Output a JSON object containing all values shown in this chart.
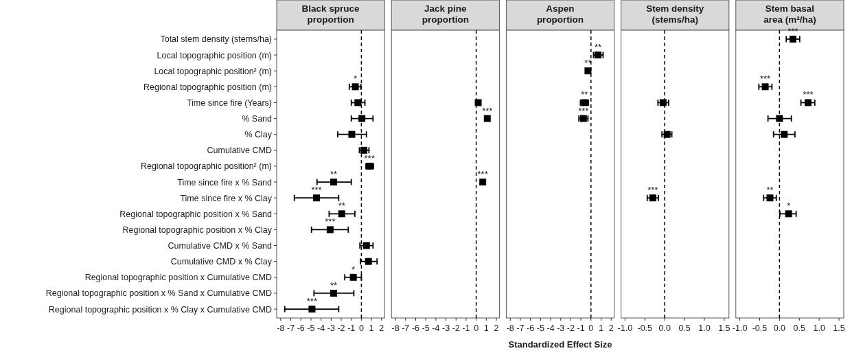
{
  "chart_data": [
    {
      "type": "scatter",
      "title": "Black spruce proportion",
      "orientation": "horizontal",
      "marker": "square",
      "grid": false,
      "categories": [
        "Total stem density (stems/ha)",
        "Local topographic position (m)",
        "Local topographic position² (m)",
        "Regional topographic position (m)",
        "Time since fire (Years)",
        "% Sand",
        "% Clay",
        "Cumulative CMD",
        "Regional topographic position² (m)",
        "Time since fire x % Sand",
        "Time since fire x % Clay",
        "Regional topographic position x % Sand",
        "Regional topographic position x % Clay",
        "Cumulative CMD x % Sand",
        "Cumulative CMD x % Clay",
        "Regional topographic position x Cumulative CMD",
        "Regional topographic position x % Sand x Cumulative CMD",
        "Regional topographic position x % Clay x Cumulative CMD"
      ],
      "xlim": [
        -8.4,
        2.3
      ],
      "xticks": [
        -8,
        -7,
        -6,
        -5,
        -4,
        -3,
        -2,
        -1,
        0,
        1,
        2
      ],
      "series": [
        {
          "color": "#000000",
          "values": [
            null,
            null,
            null,
            -0.6,
            -0.35,
            0.05,
            -0.95,
            0.25,
            0.8,
            -2.75,
            -4.45,
            -1.95,
            -3.1,
            0.5,
            0.7,
            -0.8,
            -2.75,
            -4.9
          ],
          "errors": [
            null,
            null,
            null,
            [
              -1.2,
              -0.05
            ],
            [
              -1.0,
              0.35
            ],
            [
              -1.0,
              1.15
            ],
            [
              -2.35,
              0.5
            ],
            [
              -0.2,
              0.75
            ],
            [
              0.45,
              1.2
            ],
            [
              -4.4,
              -1.0
            ],
            [
              -6.65,
              -2.25
            ],
            [
              -3.2,
              -0.65
            ],
            [
              -4.95,
              -1.3
            ],
            [
              -0.15,
              1.15
            ],
            [
              -0.1,
              1.55
            ],
            [
              -1.65,
              0
            ],
            [
              -4.7,
              -0.75
            ],
            [
              -7.6,
              -2.25
            ]
          ]
        }
      ],
      "ref_lines": [
        {
          "axis": "x",
          "value": 0,
          "line_style": "dashed"
        }
      ],
      "annotations": [
        {
          "text": "*",
          "x": -0.6,
          "y": "Regional topographic position (m)"
        },
        {
          "text": "***",
          "x": 0.8,
          "y": "Regional topographic position² (m)"
        },
        {
          "text": "**",
          "x": -2.75,
          "y": "Time since fire x % Sand"
        },
        {
          "text": "***",
          "x": -4.45,
          "y": "Time since fire x % Clay"
        },
        {
          "text": "**",
          "x": -1.95,
          "y": "Regional topographic position x % Sand"
        },
        {
          "text": "***",
          "x": -3.1,
          "y": "Regional topographic position x % Clay"
        },
        {
          "text": "*",
          "x": -0.8,
          "y": "Regional topographic position x Cumulative CMD"
        },
        {
          "text": "**",
          "x": -2.75,
          "y": "Regional topographic position x % Sand x Cumulative CMD"
        },
        {
          "text": "***",
          "x": -4.9,
          "y": "Regional topographic position x % Clay x Cumulative CMD"
        }
      ]
    },
    {
      "type": "scatter",
      "title": "Jack pine proportion",
      "orientation": "horizontal",
      "marker": "square",
      "grid": false,
      "tick_labels": "x",
      "categories": [
        "Total stem density (stems/ha)",
        "Local topographic position (m)",
        "Local topographic position² (m)",
        "Regional topographic position (m)",
        "Time since fire (Years)",
        "% Sand",
        "% Clay",
        "Cumulative CMD",
        "Regional topographic position² (m)",
        "Time since fire x % Sand",
        "Time since fire x % Clay",
        "Regional topographic position x % Sand",
        "Regional topographic position x % Clay",
        "Cumulative CMD x % Sand",
        "Cumulative CMD x % Clay",
        "Regional topographic position x Cumulative CMD",
        "Regional topographic position x % Sand x Cumulative CMD",
        "Regional topographic position x % Clay x Cumulative CMD"
      ],
      "xlim": [
        -8.4,
        2.3
      ],
      "xticks": [
        -8,
        -7,
        -6,
        -5,
        -4,
        -3,
        -2,
        -1,
        0,
        1,
        2
      ],
      "series": [
        {
          "color": "#000000",
          "values": [
            null,
            null,
            null,
            null,
            0.2,
            1.1,
            null,
            null,
            null,
            0.65,
            null,
            null,
            null,
            null,
            null,
            null,
            null,
            null
          ]
        }
      ],
      "ref_lines": [
        {
          "axis": "x",
          "value": 0,
          "line_style": "dashed"
        }
      ],
      "annotations": [
        {
          "text": "***",
          "x": 1.1,
          "y": "% Sand"
        },
        {
          "text": "***",
          "x": 0.65,
          "y": "Time since fire x % Sand"
        }
      ]
    },
    {
      "type": "scatter",
      "title": "Aspen proportion",
      "xlabel": "Standardized Effect Size",
      "orientation": "horizontal",
      "marker": "square",
      "grid": false,
      "tick_labels": "x",
      "categories": [
        "Total stem density (stems/ha)",
        "Local topographic position (m)",
        "Local topographic position² (m)",
        "Regional topographic position (m)",
        "Time since fire (Years)",
        "% Sand",
        "% Clay",
        "Cumulative CMD",
        "Regional topographic position² (m)",
        "Time since fire x % Sand",
        "Time since fire x % Clay",
        "Regional topographic position x % Sand",
        "Regional topographic position x % Clay",
        "Cumulative CMD x % Sand",
        "Cumulative CMD x % Clay",
        "Regional topographic position x Cumulative CMD",
        "Regional topographic position x % Sand x Cumulative CMD",
        "Regional topographic position x % Clay x Cumulative CMD"
      ],
      "xlim": [
        -8.4,
        2.3
      ],
      "xticks": [
        -8,
        -7,
        -6,
        -5,
        -4,
        -3,
        -2,
        -1,
        0,
        1,
        2
      ],
      "series": [
        {
          "color": "#000000",
          "values": [
            null,
            0.7,
            -0.3,
            null,
            -0.65,
            -0.75,
            null,
            null,
            null,
            null,
            null,
            null,
            null,
            null,
            null,
            null,
            null,
            null
          ],
          "errors": [
            null,
            [
              0.25,
              1.2
            ],
            null,
            null,
            [
              -1.05,
              -0.25
            ],
            [
              -1.2,
              -0.3
            ],
            null,
            null,
            null,
            null,
            null,
            null,
            null,
            null,
            null,
            null,
            null,
            null
          ]
        }
      ],
      "ref_lines": [
        {
          "axis": "x",
          "value": 0,
          "line_style": "dashed"
        }
      ],
      "annotations": [
        {
          "text": "**",
          "x": 0.7,
          "y": "Local topographic position (m)"
        },
        {
          "text": "**",
          "x": -0.3,
          "y": "Local topographic position² (m)"
        },
        {
          "text": "**",
          "x": -0.65,
          "y": "Time since fire (Years)"
        },
        {
          "text": "***",
          "x": -0.75,
          "y": "% Sand"
        }
      ]
    },
    {
      "type": "scatter",
      "title": "Stem density (stems/ha)",
      "orientation": "horizontal",
      "marker": "square",
      "grid": false,
      "tick_labels": "x",
      "categories": [
        "Total stem density (stems/ha)",
        "Local topographic position (m)",
        "Local topographic position² (m)",
        "Regional topographic position (m)",
        "Time since fire (Years)",
        "% Sand",
        "% Clay",
        "Cumulative CMD",
        "Regional topographic position² (m)",
        "Time since fire x % Sand",
        "Time since fire x % Clay",
        "Regional topographic position x % Sand",
        "Regional topographic position x % Clay",
        "Cumulative CMD x % Sand",
        "Cumulative CMD x % Clay",
        "Regional topographic position x Cumulative CMD",
        "Regional topographic position x % Sand x Cumulative CMD",
        "Regional topographic position x % Clay x Cumulative CMD"
      ],
      "xlim": [
        -1.1,
        1.62
      ],
      "xticks": [
        {
          "value": -1,
          "label": "-1.0"
        },
        -0.5,
        {
          "value": 0,
          "label": "0.0"
        },
        0.5,
        {
          "value": 1,
          "label": "1.0"
        },
        1.5
      ],
      "series": [
        {
          "color": "#000000",
          "values": [
            null,
            null,
            null,
            null,
            -0.04,
            null,
            0.06,
            null,
            null,
            null,
            -0.3,
            null,
            null,
            null,
            null,
            null,
            null,
            null
          ],
          "errors": [
            null,
            null,
            null,
            null,
            [
              -0.17,
              0.1
            ],
            null,
            [
              -0.07,
              0.18
            ],
            null,
            null,
            null,
            [
              -0.44,
              -0.16
            ],
            null,
            null,
            null,
            null,
            null,
            null,
            null
          ]
        }
      ],
      "ref_lines": [
        {
          "axis": "x",
          "value": 0,
          "line_style": "dashed"
        }
      ],
      "annotations": [
        {
          "text": "***",
          "x": -0.3,
          "y": "Time since fire x % Clay"
        }
      ]
    },
    {
      "type": "scatter",
      "title": "Stem basal area (m²/ha)",
      "orientation": "horizontal",
      "marker": "square",
      "grid": false,
      "tick_labels": "x",
      "categories": [
        "Total stem density (stems/ha)",
        "Local topographic position (m)",
        "Local topographic position² (m)",
        "Regional topographic position (m)",
        "Time since fire (Years)",
        "% Sand",
        "% Clay",
        "Cumulative CMD",
        "Regional topographic position² (m)",
        "Time since fire x % Sand",
        "Time since fire x % Clay",
        "Regional topographic position x % Sand",
        "Regional topographic position x % Clay",
        "Cumulative CMD x % Sand",
        "Cumulative CMD x % Clay",
        "Regional topographic position x Cumulative CMD",
        "Regional topographic position x % Sand x Cumulative CMD",
        "Regional topographic position x % Clay x Cumulative CMD"
      ],
      "xlim": [
        -1.1,
        1.62
      ],
      "xticks": [
        {
          "value": -1,
          "label": "-1.0"
        },
        -0.5,
        {
          "value": 0,
          "label": "0.0"
        },
        0.5,
        {
          "value": 1,
          "label": "1.0"
        },
        1.5
      ],
      "series": [
        {
          "color": "#000000",
          "values": [
            0.34,
            null,
            null,
            -0.36,
            0.72,
            0.0,
            0.12,
            null,
            null,
            null,
            -0.24,
            0.23,
            null,
            null,
            null,
            null,
            null,
            null
          ],
          "errors": [
            [
              0.17,
              0.51
            ],
            null,
            null,
            [
              -0.52,
              -0.19
            ],
            [
              0.54,
              0.89
            ],
            [
              -0.29,
              0.3
            ],
            [
              -0.15,
              0.39
            ],
            null,
            null,
            null,
            [
              -0.4,
              -0.08
            ],
            [
              0.01,
              0.42
            ],
            null,
            null,
            null,
            null,
            null,
            null
          ]
        }
      ],
      "ref_lines": [
        {
          "axis": "x",
          "value": 0,
          "line_style": "dashed"
        }
      ],
      "annotations": [
        {
          "text": "***",
          "x": 0.34,
          "y": "Total stem density (stems/ha)"
        },
        {
          "text": "***",
          "x": -0.36,
          "y": "Regional topographic position (m)"
        },
        {
          "text": "***",
          "x": 0.72,
          "y": "Time since fire (Years)"
        },
        {
          "text": "**",
          "x": -0.24,
          "y": "Time since fire x % Clay"
        },
        {
          "text": "*",
          "x": 0.23,
          "y": "Regional topographic position x % Sand"
        }
      ]
    }
  ]
}
